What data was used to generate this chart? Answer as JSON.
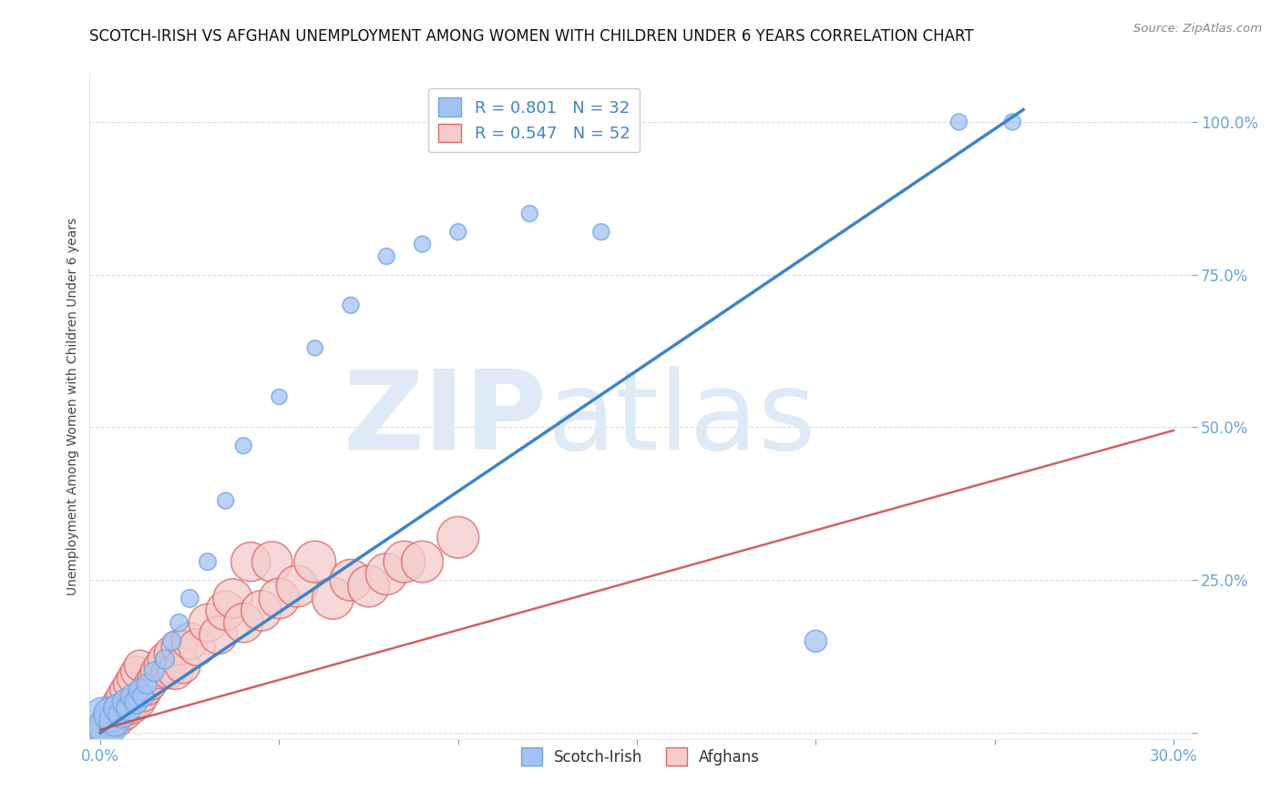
{
  "title": "SCOTCH-IRISH VS AFGHAN UNEMPLOYMENT AMONG WOMEN WITH CHILDREN UNDER 6 YEARS CORRELATION CHART",
  "source": "Source: ZipAtlas.com",
  "ylabel": "Unemployment Among Women with Children Under 6 years",
  "xlim": [
    -0.003,
    0.305
  ],
  "ylim": [
    -0.01,
    1.08
  ],
  "xticks": [
    0.0,
    0.05,
    0.1,
    0.15,
    0.2,
    0.25,
    0.3
  ],
  "ytick_positions": [
    0.0,
    0.25,
    0.5,
    0.75,
    1.0
  ],
  "scotch_irish_R": 0.801,
  "scotch_irish_N": 32,
  "afghan_R": 0.547,
  "afghan_N": 52,
  "scotch_irish_color": "#a4c2f4",
  "scotch_irish_edge": "#6fa8dc",
  "afghan_color": "#f4cccc",
  "afghan_edge": "#e06666",
  "scotch_irish_line_color": "#3d85c8",
  "afghan_line_color": "#cc4444",
  "background_color": "#ffffff",
  "grid_color": "#cccccc",
  "tick_color": "#6aa6d6",
  "scotch_irish_x": [
    0.001,
    0.002,
    0.003,
    0.004,
    0.005,
    0.006,
    0.007,
    0.008,
    0.009,
    0.01,
    0.011,
    0.012,
    0.013,
    0.015,
    0.018,
    0.02,
    0.022,
    0.025,
    0.03,
    0.035,
    0.04,
    0.05,
    0.06,
    0.07,
    0.08,
    0.09,
    0.1,
    0.12,
    0.14,
    0.2,
    0.24,
    0.255
  ],
  "scotch_irish_y": [
    0.02,
    0.01,
    0.03,
    0.02,
    0.04,
    0.03,
    0.05,
    0.04,
    0.06,
    0.05,
    0.07,
    0.06,
    0.08,
    0.1,
    0.12,
    0.15,
    0.18,
    0.22,
    0.28,
    0.38,
    0.47,
    0.55,
    0.63,
    0.7,
    0.78,
    0.8,
    0.82,
    0.85,
    0.82,
    0.15,
    1.0,
    1.0
  ],
  "scotch_irish_s": [
    900,
    600,
    500,
    400,
    350,
    300,
    280,
    260,
    240,
    220,
    200,
    180,
    170,
    160,
    150,
    140,
    130,
    130,
    120,
    110,
    110,
    100,
    100,
    110,
    110,
    110,
    110,
    110,
    110,
    200,
    110,
    110
  ],
  "afghan_x": [
    0.001,
    0.002,
    0.003,
    0.003,
    0.004,
    0.004,
    0.005,
    0.005,
    0.006,
    0.006,
    0.007,
    0.007,
    0.008,
    0.008,
    0.009,
    0.009,
    0.01,
    0.01,
    0.011,
    0.011,
    0.012,
    0.013,
    0.014,
    0.015,
    0.016,
    0.017,
    0.018,
    0.019,
    0.02,
    0.021,
    0.022,
    0.023,
    0.025,
    0.027,
    0.03,
    0.033,
    0.035,
    0.037,
    0.04,
    0.042,
    0.045,
    0.048,
    0.05,
    0.055,
    0.06,
    0.065,
    0.07,
    0.075,
    0.08,
    0.085,
    0.09,
    0.1
  ],
  "afghan_y": [
    0.01,
    0.01,
    0.02,
    0.03,
    0.02,
    0.04,
    0.02,
    0.05,
    0.03,
    0.06,
    0.03,
    0.07,
    0.04,
    0.08,
    0.04,
    0.09,
    0.05,
    0.1,
    0.05,
    0.11,
    0.06,
    0.07,
    0.08,
    0.09,
    0.1,
    0.11,
    0.12,
    0.1,
    0.13,
    0.1,
    0.14,
    0.11,
    0.15,
    0.14,
    0.18,
    0.16,
    0.2,
    0.22,
    0.18,
    0.28,
    0.2,
    0.28,
    0.22,
    0.24,
    0.28,
    0.22,
    0.25,
    0.24,
    0.26,
    0.28,
    0.28,
    0.32
  ],
  "afghan_s": [
    60,
    55,
    55,
    50,
    50,
    50,
    50,
    50,
    50,
    50,
    50,
    50,
    50,
    50,
    50,
    50,
    50,
    50,
    50,
    50,
    50,
    50,
    55,
    55,
    60,
    60,
    60,
    60,
    65,
    65,
    65,
    65,
    70,
    70,
    75,
    75,
    80,
    80,
    80,
    80,
    85,
    85,
    85,
    90,
    90,
    90,
    90,
    90,
    90,
    90,
    90,
    90
  ],
  "scotch_irish_line_x": [
    0.0,
    0.258
  ],
  "scotch_irish_line_y": [
    0.0,
    1.02
  ],
  "afghan_line_x": [
    0.0,
    0.3
  ],
  "afghan_line_y": [
    0.005,
    0.495
  ],
  "title_fontsize": 12,
  "legend_fontsize": 13
}
